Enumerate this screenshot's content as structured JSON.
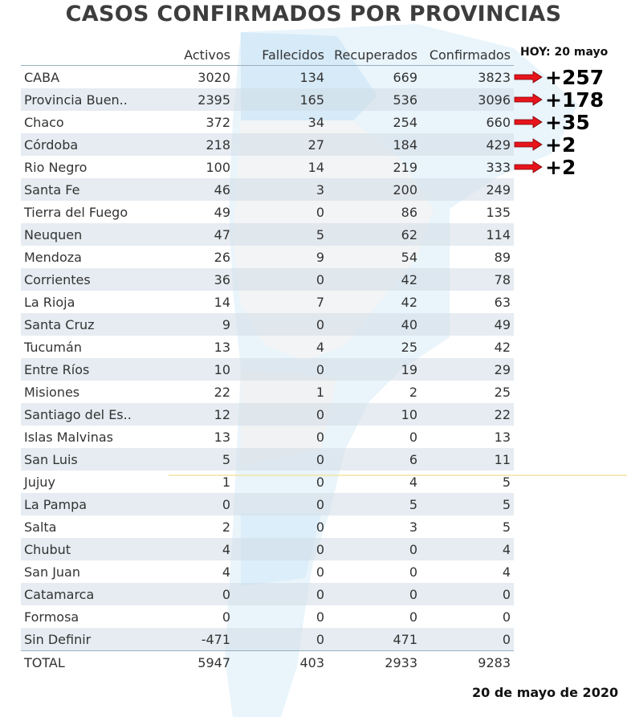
{
  "title": "CASOS CONFIRMADOS POR PROVINCIAS",
  "today_label": "HOY: 20 mayo",
  "date_label": "20 de mayo de 2020",
  "columns": [
    "",
    "Activos",
    "Fallecidos",
    "Recuperados",
    "Confirmados"
  ],
  "rows": [
    [
      "CABA",
      "3020",
      "134",
      "669",
      "3823"
    ],
    [
      "Provincia Buen..",
      "2395",
      "165",
      "536",
      "3096"
    ],
    [
      "Chaco",
      "372",
      "34",
      "254",
      "660"
    ],
    [
      "Córdoba",
      "218",
      "27",
      "184",
      "429"
    ],
    [
      "Rio Negro",
      "100",
      "14",
      "219",
      "333"
    ],
    [
      "Santa Fe",
      "46",
      "3",
      "200",
      "249"
    ],
    [
      "Tierra del Fuego",
      "49",
      "0",
      "86",
      "135"
    ],
    [
      "Neuquen",
      "47",
      "5",
      "62",
      "114"
    ],
    [
      "Mendoza",
      "26",
      "9",
      "54",
      "89"
    ],
    [
      "Corrientes",
      "36",
      "0",
      "42",
      "78"
    ],
    [
      "La Rioja",
      "14",
      "7",
      "42",
      "63"
    ],
    [
      "Santa Cruz",
      "9",
      "0",
      "40",
      "49"
    ],
    [
      "Tucumán",
      "13",
      "4",
      "25",
      "42"
    ],
    [
      "Entre Ríos",
      "10",
      "0",
      "19",
      "29"
    ],
    [
      "Misiones",
      "22",
      "1",
      "2",
      "25"
    ],
    [
      "Santiago del Es..",
      "12",
      "0",
      "10",
      "22"
    ],
    [
      "Islas Malvinas",
      "13",
      "0",
      "0",
      "13"
    ],
    [
      "San Luis",
      "5",
      "0",
      "6",
      "11"
    ],
    [
      "Jujuy",
      "1",
      "0",
      "4",
      "5"
    ],
    [
      "La Pampa",
      "0",
      "0",
      "5",
      "5"
    ],
    [
      "Salta",
      "2",
      "0",
      "3",
      "5"
    ],
    [
      "Chubut",
      "4",
      "0",
      "0",
      "4"
    ],
    [
      "San Juan",
      "4",
      "0",
      "0",
      "4"
    ],
    [
      "Catamarca",
      "0",
      "0",
      "0",
      "0"
    ],
    [
      "Formosa",
      "0",
      "0",
      "0",
      "0"
    ],
    [
      "Sin Definir",
      "-471",
      "0",
      "471",
      "0"
    ]
  ],
  "total": [
    "TOTAL",
    "5947",
    "403",
    "2933",
    "9283"
  ],
  "increments": [
    {
      "row": 0,
      "text": "+257"
    },
    {
      "row": 1,
      "text": "+178"
    },
    {
      "row": 2,
      "text": "+35"
    },
    {
      "row": 3,
      "text": "+2"
    },
    {
      "row": 4,
      "text": "+2"
    }
  ],
  "colors": {
    "arrow": "#e8141c",
    "stripe": "#d2dce6",
    "map_light": "#eaf4fb",
    "map_blue": "#cfe6f7"
  }
}
